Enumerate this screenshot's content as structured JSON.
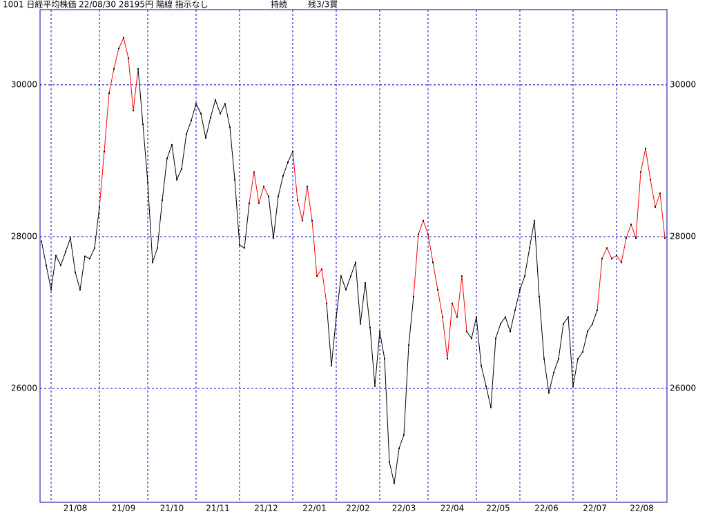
{
  "chart_data": {
    "type": "line",
    "title": "1001 日経平均株価 22/08/30 28195円 陽線 指示なし",
    "status": "持続",
    "position": "残3/3買",
    "ylim": [
      24500,
      30990
    ],
    "yticks": [
      26000,
      28000,
      30000
    ],
    "grid": true,
    "categories": [
      null,
      null,
      "21/08",
      null,
      null,
      null,
      null,
      null,
      null,
      null,
      null,
      null,
      "21/09",
      null,
      null,
      null,
      null,
      null,
      null,
      null,
      null,
      null,
      "21/10",
      null,
      null,
      null,
      null,
      null,
      null,
      null,
      null,
      null,
      "21/11",
      null,
      null,
      null,
      null,
      null,
      null,
      null,
      null,
      "21/12",
      null,
      null,
      null,
      null,
      null,
      null,
      null,
      null,
      null,
      null,
      "22/01",
      null,
      null,
      null,
      null,
      null,
      null,
      null,
      null,
      "22/02",
      null,
      null,
      null,
      null,
      null,
      null,
      null,
      null,
      "22/03",
      null,
      null,
      null,
      null,
      null,
      null,
      null,
      null,
      null,
      "22/04",
      null,
      null,
      null,
      null,
      null,
      null,
      null,
      null,
      null,
      "22/05",
      null,
      null,
      null,
      null,
      null,
      null,
      null,
      null,
      "22/06",
      null,
      null,
      null,
      null,
      null,
      null,
      null,
      null,
      null,
      null,
      "22/07",
      null,
      null,
      null,
      null,
      null,
      null,
      null,
      null,
      "22/08",
      null,
      null,
      null,
      null,
      null,
      null,
      null,
      null,
      null,
      null
    ],
    "series": [
      {
        "color": "#000000",
        "values": [
          27940,
          27620,
          27300,
          27750,
          27620,
          27800,
          27980,
          27530,
          27300,
          27740,
          27710,
          27850,
          28390,
          null,
          null,
          null,
          null,
          null,
          null,
          null,
          30210,
          29480,
          28710,
          27660,
          27850,
          28480,
          29030,
          29210,
          28750,
          28890,
          29350,
          29530,
          29750,
          29620,
          29300,
          29570,
          29800,
          29620,
          29750,
          29440,
          28750,
          27890,
          27850,
          28440,
          null,
          null,
          null,
          28530,
          27980,
          28530,
          28800,
          28980,
          29120,
          null,
          null,
          null,
          null,
          null,
          null,
          27120,
          26300,
          26940,
          27480,
          27300,
          27480,
          27660,
          26850,
          27390,
          26800,
          26030,
          26750,
          26390,
          25030,
          24750,
          25210,
          25390,
          26570,
          27210,
          null,
          null,
          null,
          null,
          null,
          null,
          null,
          null,
          null,
          null,
          26750,
          26660,
          26940,
          26300,
          26030,
          25750,
          26660,
          26850,
          26940,
          26750,
          27030,
          27300,
          27480,
          27850,
          28210,
          27210,
          26390,
          25940,
          26210,
          26390,
          26850,
          26940,
          26030,
          26390,
          26480,
          26750,
          26850,
          27030,
          null,
          null,
          null,
          null,
          null,
          null,
          null,
          null,
          null,
          null,
          null,
          null,
          null,
          null
        ]
      },
      {
        "color": "#ff0000",
        "values": [
          null,
          null,
          null,
          null,
          null,
          null,
          null,
          null,
          null,
          null,
          null,
          null,
          28390,
          29120,
          29890,
          30210,
          30480,
          30620,
          30350,
          29660,
          30210,
          null,
          null,
          null,
          null,
          null,
          null,
          null,
          null,
          null,
          null,
          null,
          null,
          null,
          null,
          null,
          null,
          null,
          null,
          null,
          null,
          null,
          null,
          28440,
          28850,
          28440,
          28660,
          28530,
          null,
          null,
          null,
          null,
          29120,
          28480,
          28210,
          28660,
          28210,
          27480,
          27570,
          27120,
          null,
          null,
          null,
          null,
          null,
          null,
          null,
          null,
          null,
          null,
          null,
          null,
          null,
          null,
          null,
          null,
          null,
          27210,
          28030,
          28210,
          28030,
          27660,
          27300,
          26940,
          26390,
          27120,
          26940,
          27480,
          26750,
          null,
          null,
          null,
          null,
          null,
          null,
          null,
          null,
          null,
          null,
          null,
          null,
          null,
          null,
          null,
          null,
          null,
          null,
          null,
          null,
          null,
          null,
          null,
          null,
          null,
          null,
          27030,
          27710,
          27850,
          27710,
          27750,
          27660,
          27980,
          28160,
          27980,
          28850,
          29160,
          28750,
          28390,
          28570,
          27980
        ]
      }
    ]
  }
}
